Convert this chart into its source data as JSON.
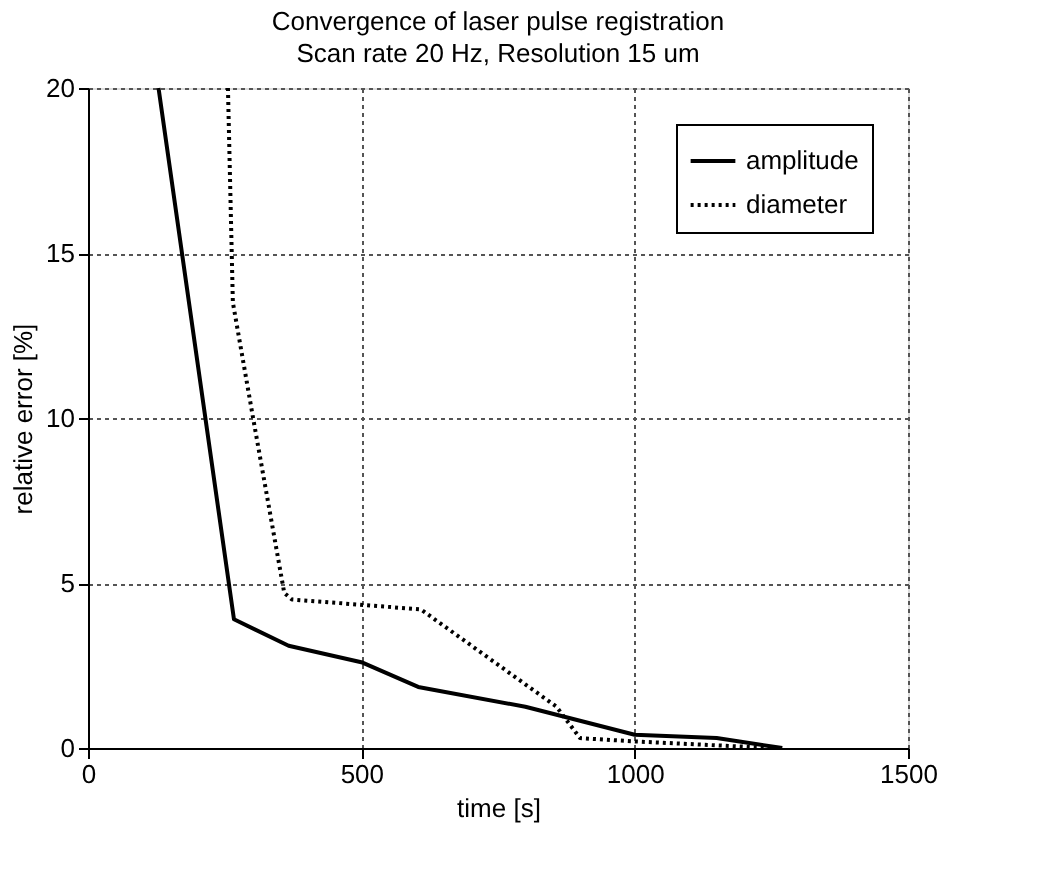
{
  "chart_data": {
    "type": "line",
    "title": "Convergence of laser pulse registration",
    "subtitle": "Scan rate 20 Hz, Resolution 15 um",
    "xlabel": "time [s]",
    "ylabel": "relative error [%]",
    "xlim": [
      0,
      1500
    ],
    "xticks": [
      0,
      500,
      1000,
      1500
    ],
    "ylim": [
      0,
      20
    ],
    "yticks": [
      0,
      5,
      10,
      15,
      20
    ],
    "grid": true,
    "legend": "top right",
    "series": [
      {
        "name": "amplitude",
        "color": "#000000",
        "line_style": "solid",
        "x": [
          129,
          267,
          367,
          500,
          604,
          800,
          1000,
          1150,
          1270
        ],
        "values": [
          20,
          3.9,
          3.1,
          2.6,
          1.85,
          1.25,
          0.4,
          0.3,
          0
        ]
      },
      {
        "name": "diameter",
        "color": "#000000",
        "line_style": "dotted",
        "x": [
          256,
          265,
          302,
          359,
          373,
          609,
          857,
          900,
          1000,
          1250
        ],
        "values": [
          20,
          13.5,
          10,
          4.7,
          4.5,
          4.2,
          1.25,
          0.3,
          0.2,
          0
        ]
      }
    ]
  }
}
